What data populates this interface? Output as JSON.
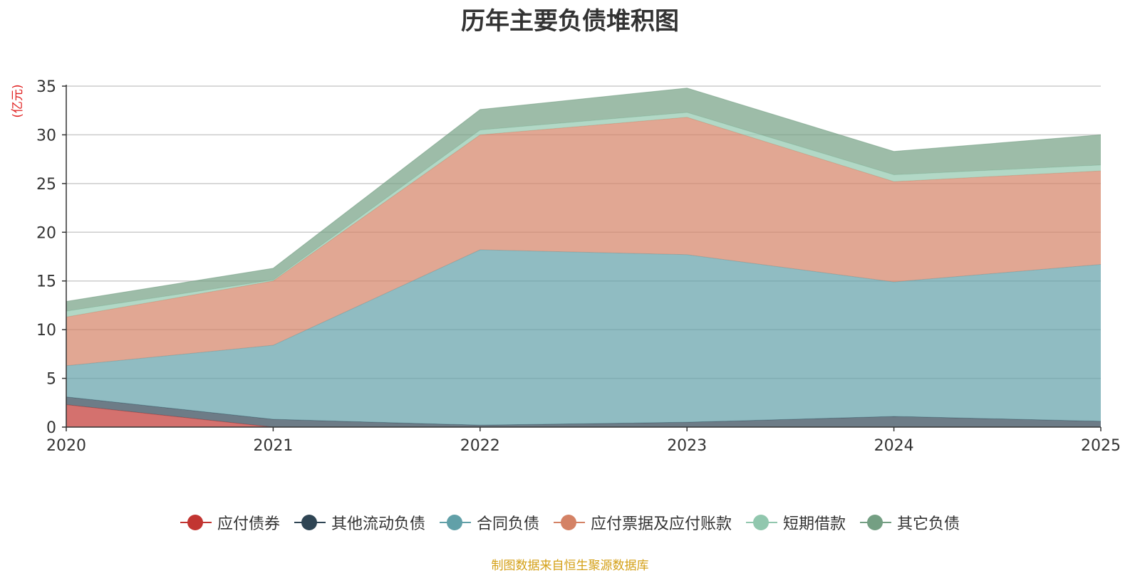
{
  "chart_data": {
    "type": "area",
    "stacked": true,
    "title": "历年主要负债堆积图",
    "ylabel": "(亿元)",
    "xlabel": "",
    "categories": [
      "2020",
      "2021",
      "2022",
      "2023",
      "2024",
      "2025"
    ],
    "ylim": [
      0,
      35
    ],
    "yticks": [
      0,
      5,
      10,
      15,
      20,
      25,
      30,
      35
    ],
    "grid": true,
    "legend_position": "bottom",
    "series": [
      {
        "name": "应付债券",
        "color": "#c23531",
        "values": [
          2.3,
          0,
          0,
          0,
          0,
          0
        ]
      },
      {
        "name": "其他流动负债",
        "color": "#2f4554",
        "values": [
          0.8,
          0.8,
          0.2,
          0.5,
          1.1,
          0.6
        ]
      },
      {
        "name": "合同负债",
        "color": "#61a0a8",
        "values": [
          3.2,
          7.6,
          18.0,
          17.2,
          13.8,
          16.1
        ]
      },
      {
        "name": "应付票据及应付账款",
        "color": "#d48265",
        "values": [
          5.0,
          6.6,
          11.8,
          14.1,
          10.3,
          9.6
        ]
      },
      {
        "name": "短期借款",
        "color": "#91c7ae",
        "values": [
          0.6,
          0.1,
          0.5,
          0.5,
          0.7,
          0.6
        ]
      },
      {
        "name": "其它负债",
        "color": "#749f83",
        "values": [
          1.0,
          1.2,
          2.1,
          2.5,
          2.4,
          3.1
        ]
      }
    ]
  },
  "footer": {
    "source_note": "制图数据来自恒生聚源数据库"
  }
}
